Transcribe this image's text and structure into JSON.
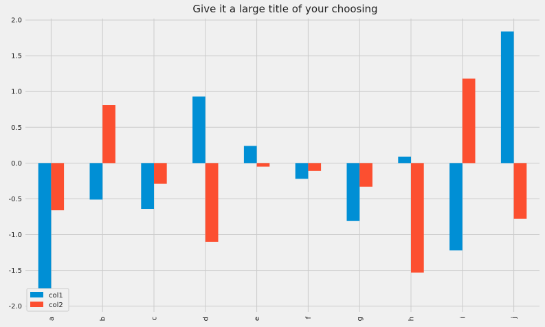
{
  "chart_data": {
    "type": "bar",
    "title": "Give it a large title of your choosing",
    "xlabel": "",
    "ylabel": "",
    "categories": [
      "a",
      "b",
      "c",
      "d",
      "e",
      "f",
      "g",
      "h",
      "i",
      "j"
    ],
    "series": [
      {
        "name": "col1",
        "color": "#008fd5",
        "values": [
          -1.75,
          -0.51,
          -0.64,
          0.93,
          0.24,
          -0.22,
          -0.81,
          0.09,
          -1.22,
          1.84
        ]
      },
      {
        "name": "col2",
        "color": "#fc4f30",
        "values": [
          -0.66,
          0.81,
          -0.29,
          -1.1,
          -0.05,
          -0.11,
          -0.33,
          -1.53,
          1.18,
          -0.78
        ]
      }
    ],
    "ylim": [
      -2.08,
      2.02
    ],
    "yticks": [
      "-2.0",
      "-1.5",
      "-1.0",
      "-0.5",
      "0.0",
      "0.5",
      "1.0",
      "1.5",
      "2.0"
    ],
    "ytick_values": [
      -2.0,
      -1.5,
      -1.0,
      -0.5,
      0.0,
      0.5,
      1.0,
      1.5,
      2.0
    ],
    "grid": true,
    "legend_position": "lower-left",
    "background_color": "#f0f0f0",
    "grid_color": "#cbcbcb"
  }
}
